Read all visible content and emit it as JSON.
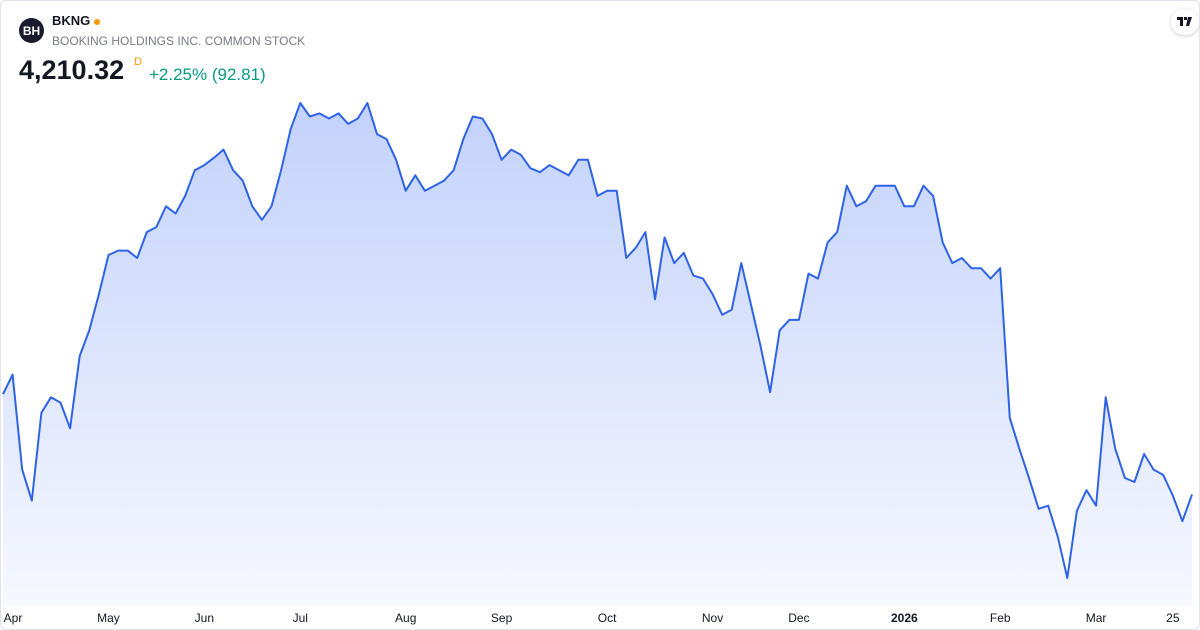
{
  "header": {
    "logo": "BH",
    "symbol": "BKNG",
    "name": "BOOKING HOLDINGS INC. COMMON STOCK",
    "price": "4,210.32",
    "interval": "D",
    "change": "+2.25% (92.81)"
  },
  "chart_data": {
    "type": "area",
    "color": "#2f63e6",
    "categories": [
      "Apr",
      null,
      null,
      null,
      null,
      null,
      null,
      null,
      null,
      null,
      null,
      "May",
      null,
      null,
      null,
      null,
      null,
      null,
      null,
      null,
      null,
      "Jun",
      null,
      null,
      null,
      null,
      null,
      null,
      null,
      null,
      null,
      "Jul",
      null,
      null,
      null,
      null,
      null,
      null,
      null,
      null,
      null,
      null,
      "Aug",
      null,
      null,
      null,
      null,
      null,
      null,
      null,
      null,
      null,
      "Sep",
      null,
      null,
      null,
      null,
      null,
      null,
      null,
      null,
      null,
      null,
      "Oct",
      null,
      null,
      null,
      null,
      null,
      null,
      null,
      null,
      null,
      null,
      "Nov",
      null,
      null,
      null,
      null,
      null,
      null,
      null,
      null,
      "Dec",
      null,
      null,
      null,
      null,
      null,
      null,
      null,
      null,
      null,
      null,
      "2026",
      null,
      null,
      null,
      null,
      null,
      null,
      null,
      null,
      null,
      "Feb",
      null,
      null,
      null,
      null,
      null,
      null,
      null,
      null,
      null,
      "Mar",
      null,
      null,
      null,
      null,
      null,
      null,
      null,
      "25",
      null,
      null
    ],
    "values": [
      4604,
      4681,
      4308,
      4186,
      4531,
      4592,
      4571,
      4470,
      4754,
      4855,
      4997,
      5151,
      5168,
      5168,
      5139,
      5241,
      5261,
      5342,
      5314,
      5383,
      5484,
      5504,
      5533,
      5565,
      5484,
      5443,
      5342,
      5289,
      5342,
      5484,
      5646,
      5748,
      5695,
      5707,
      5687,
      5707,
      5666,
      5687,
      5748,
      5626,
      5606,
      5525,
      5403,
      5464,
      5403,
      5423,
      5443,
      5484,
      5606,
      5695,
      5687,
      5626,
      5525,
      5565,
      5545,
      5492,
      5476,
      5504,
      5484,
      5464,
      5525,
      5525,
      5383,
      5403,
      5403,
      5139,
      5180,
      5241,
      4977,
      5220,
      5119,
      5159,
      5070,
      5058,
      4997,
      4916,
      4936,
      5119,
      4957,
      4794,
      4612,
      4855,
      4896,
      4896,
      5078,
      5058,
      5200,
      5241,
      5423,
      5342,
      5362,
      5423,
      5423,
      5423,
      5342,
      5342,
      5423,
      5383,
      5200,
      5119,
      5139,
      5099,
      5099,
      5058,
      5099,
      4511,
      4389,
      4275,
      4154,
      4166,
      4044,
      3882,
      4146,
      4227,
      4166,
      4592,
      4389,
      4275,
      4259,
      4369,
      4308,
      4287,
      4206,
      4105,
      4210.32
    ]
  }
}
